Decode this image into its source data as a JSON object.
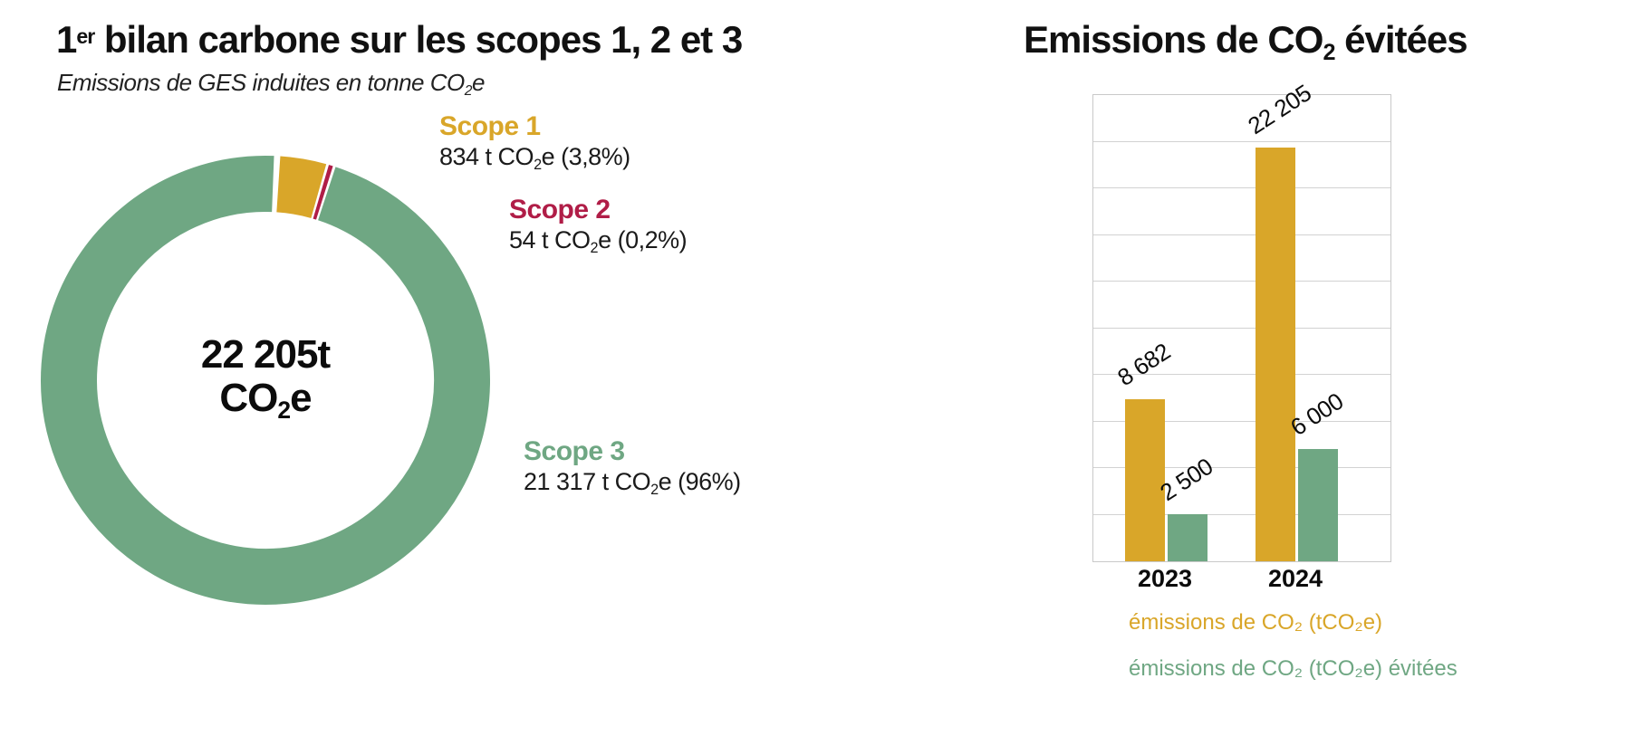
{
  "left_chart": {
    "title_num": "1",
    "title_sup": "er",
    "title_rest": " bilan carbone sur les scopes 1, 2 et 3",
    "subtitle_pre": "Emissions de GES induites en tonne CO",
    "subtitle_sub": "2",
    "subtitle_post": "e",
    "center_line1": "22 205t",
    "center_co": "CO",
    "center_co_sub": "2",
    "center_co_post": "e",
    "scopes": [
      {
        "name": "Scope 1",
        "value_pre": "834 t CO",
        "value_sub": "2",
        "value_post": "e (3,8%)"
      },
      {
        "name": "Scope 2",
        "value_pre": "54 t CO",
        "value_sub": "2",
        "value_post": "e (0,2%)"
      },
      {
        "name": "Scope 3",
        "value_pre": "21 317 t CO",
        "value_sub": "2",
        "value_post": "e (96%)"
      }
    ]
  },
  "right_chart": {
    "title_pre": "Emissions de CO",
    "title_sub": "2",
    "title_post": " évitées"
  },
  "chart_data": [
    {
      "type": "pie",
      "subtype": "donut",
      "title": "1er bilan carbone sur les scopes 1, 2 et 3",
      "subtitle": "Emissions de GES induites en tonne CO2e",
      "center_label": "22 205t CO2e",
      "total": 22205,
      "start_angle_deg": 3,
      "slices": [
        {
          "label": "Scope 1",
          "value": 834,
          "pct_label": "3,8%",
          "color": "#D9A629"
        },
        {
          "label": "Scope 2",
          "value": 54,
          "pct_label": "0,2%",
          "color": "#B01D47"
        },
        {
          "label": "Scope 3",
          "value": 21317,
          "pct_label": "96%",
          "color": "#6FA783"
        }
      ]
    },
    {
      "type": "bar",
      "title": "Emissions de CO2 évitées",
      "categories": [
        "2023",
        "2024"
      ],
      "series": [
        {
          "name": "émissions de CO₂ (tCO₂e)",
          "color": "#D9A629",
          "values": [
            8682,
            22205
          ],
          "value_labels": [
            "8 682",
            "22 205"
          ]
        },
        {
          "name": "émissions de CO₂ (tCO₂e) évitées",
          "color": "#6FA783",
          "values": [
            2500,
            6000
          ],
          "value_labels": [
            "2 500",
            "6 000"
          ]
        }
      ],
      "ylim": [
        0,
        25000
      ],
      "gridline_interval": 2500,
      "grid": true,
      "legend_position": "bottom-left"
    }
  ]
}
